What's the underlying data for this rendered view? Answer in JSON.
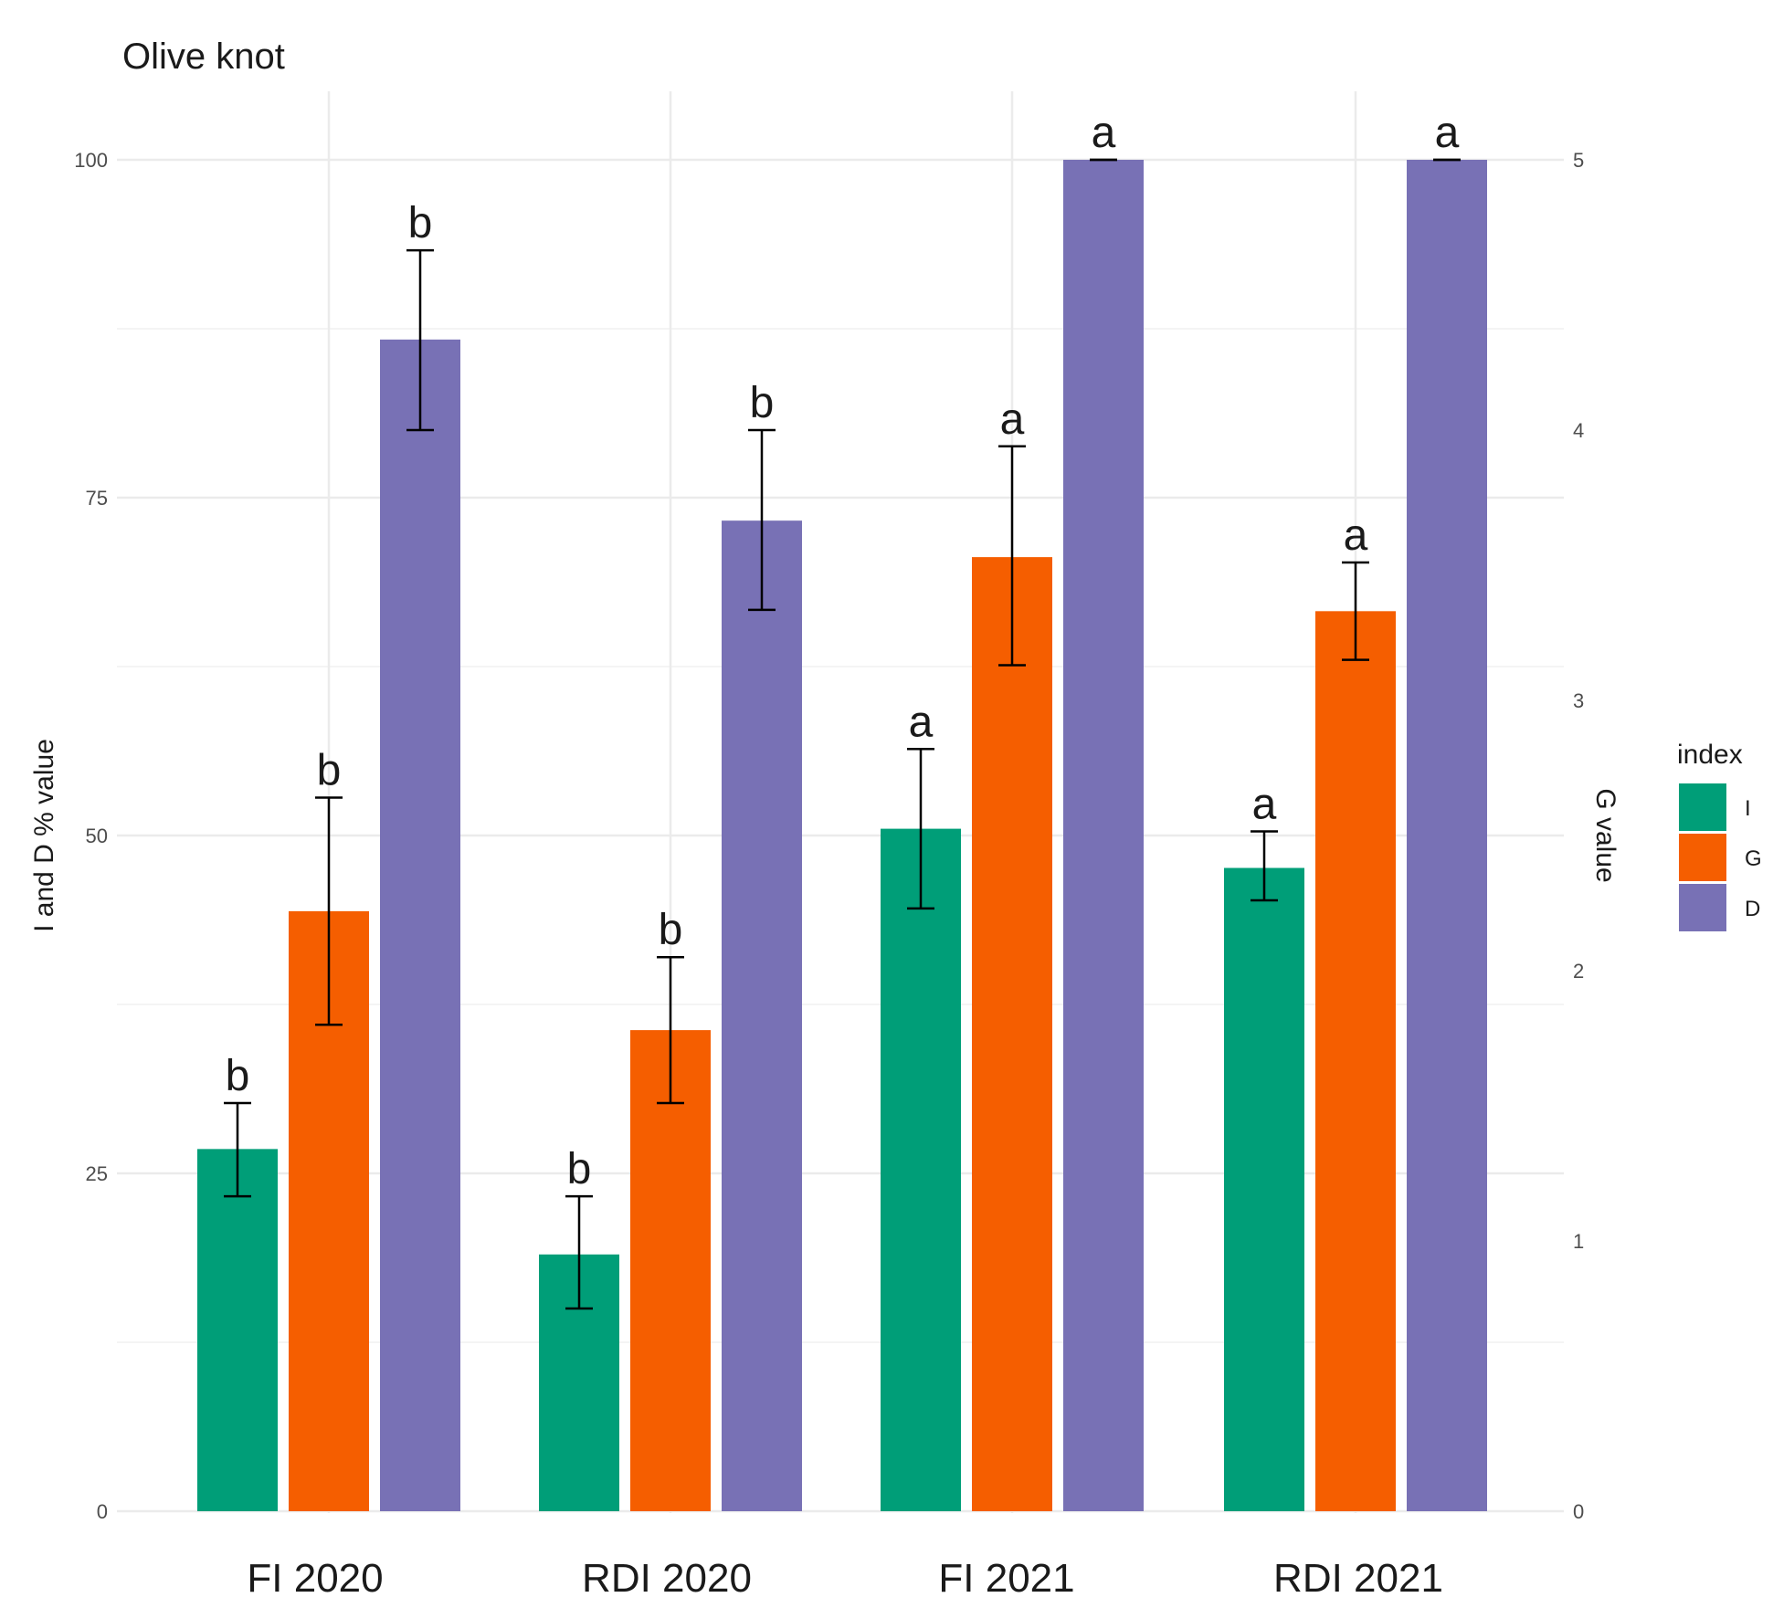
{
  "chart_data": {
    "type": "bar",
    "title": "Olive knot",
    "categories": [
      "FI 2020",
      "RDI 2020",
      "FI 2021",
      "RDI 2021"
    ],
    "ylabel": "I and D % value",
    "y2label": "G value",
    "ylim": [
      0,
      100
    ],
    "y2lim": [
      0,
      5
    ],
    "yticks": [
      "0",
      "25",
      "50",
      "75",
      "100"
    ],
    "y2ticks": [
      "0",
      "1",
      "2",
      "3",
      "4",
      "5"
    ],
    "grid": true,
    "legend": {
      "title": "index",
      "position": "right",
      "entries": [
        "I",
        "G",
        "D"
      ]
    },
    "series": [
      {
        "name": "I",
        "axis": "left",
        "color": "#009E78",
        "values": [
          26.8,
          19.0,
          50.5,
          47.6
        ],
        "err_low": [
          23.3,
          15.0,
          44.6,
          45.2
        ],
        "err_high": [
          30.2,
          23.3,
          56.4,
          50.3
        ],
        "letters": [
          "b",
          "b",
          "a",
          "a"
        ]
      },
      {
        "name": "G",
        "axis": "right",
        "color": "#F55E00",
        "values": [
          2.22,
          1.78,
          3.53,
          3.33
        ],
        "err_low": [
          1.8,
          1.51,
          3.13,
          3.15
        ],
        "err_high": [
          2.64,
          2.05,
          3.94,
          3.51
        ],
        "letters": [
          "b",
          "b",
          "a",
          "a"
        ]
      },
      {
        "name": "D",
        "axis": "left",
        "color": "#7871B5",
        "values": [
          86.7,
          73.3,
          100,
          100
        ],
        "err_low": [
          80.0,
          66.7,
          100,
          100
        ],
        "err_high": [
          93.3,
          80.0,
          100,
          100
        ],
        "letters": [
          "b",
          "b",
          "a",
          "a"
        ]
      }
    ]
  }
}
